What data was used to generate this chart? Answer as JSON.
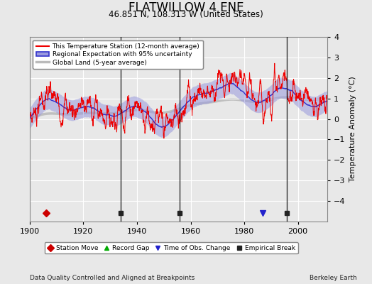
{
  "title": "FLATWILLOW 4 ENE",
  "subtitle": "46.851 N, 108.313 W (United States)",
  "ylabel": "Temperature Anomaly (°C)",
  "xlabel_left": "Data Quality Controlled and Aligned at Breakpoints",
  "xlabel_right": "Berkeley Earth",
  "ylim": [
    -5,
    4
  ],
  "xlim": [
    1900,
    2011
  ],
  "xticks": [
    1900,
    1920,
    1940,
    1960,
    1980,
    2000
  ],
  "yticks": [
    -4,
    -3,
    -2,
    -1,
    0,
    1,
    2,
    3,
    4
  ],
  "bg_color": "#e8e8e8",
  "plot_bg_color": "#e8e8e8",
  "grid_color": "#ffffff",
  "line_red": "#ee0000",
  "line_blue": "#3333cc",
  "line_blue_fill": "#9999dd",
  "line_gray": "#bbbbbb",
  "legend_items": [
    {
      "label": "This Temperature Station (12-month average)",
      "color": "#ee0000",
      "lw": 1.5
    },
    {
      "label": "Regional Expectation with 95% uncertainty",
      "color": "#3333cc",
      "lw": 1.5
    },
    {
      "label": "Global Land (5-year average)",
      "color": "#bbbbbb",
      "lw": 2.5
    }
  ],
  "marker_items": [
    {
      "label": "Station Move",
      "marker": "D",
      "color": "#cc0000"
    },
    {
      "label": "Record Gap",
      "marker": "^",
      "color": "#00aa00"
    },
    {
      "label": "Time of Obs. Change",
      "marker": "v",
      "color": "#2222cc"
    },
    {
      "label": "Empirical Break",
      "marker": "s",
      "color": "#222222"
    }
  ],
  "station_moves": [
    1906
  ],
  "record_gaps": [],
  "tobs_changes": [
    1987
  ],
  "empirical_breaks": [
    1934,
    1956,
    1996
  ],
  "title_fontsize": 12,
  "subtitle_fontsize": 8.5,
  "tick_fontsize": 8,
  "label_fontsize": 8
}
